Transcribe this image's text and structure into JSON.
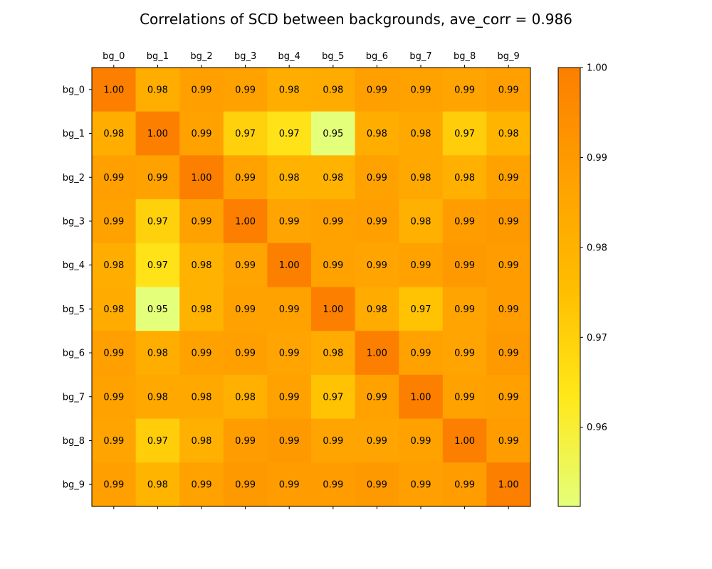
{
  "chart_data": {
    "type": "heatmap",
    "title": "Correlations of SCD between backgrounds, ave_corr = 0.986",
    "x_labels": [
      "bg_0",
      "bg_1",
      "bg_2",
      "bg_3",
      "bg_4",
      "bg_5",
      "bg_6",
      "bg_7",
      "bg_8",
      "bg_9"
    ],
    "y_labels": [
      "bg_0",
      "bg_1",
      "bg_2",
      "bg_3",
      "bg_4",
      "bg_5",
      "bg_6",
      "bg_7",
      "bg_8",
      "bg_9"
    ],
    "values": [
      [
        1.0,
        0.982,
        0.988,
        0.987,
        0.982,
        0.983,
        0.988,
        0.987,
        0.986,
        0.988
      ],
      [
        0.982,
        1.0,
        0.987,
        0.97,
        0.965,
        0.951,
        0.982,
        0.984,
        0.971,
        0.979
      ],
      [
        0.988,
        0.987,
        1.0,
        0.987,
        0.98,
        0.98,
        0.987,
        0.984,
        0.981,
        0.987
      ],
      [
        0.987,
        0.97,
        0.987,
        1.0,
        0.986,
        0.987,
        0.988,
        0.981,
        0.989,
        0.99
      ],
      [
        0.982,
        0.965,
        0.98,
        0.986,
        1.0,
        0.987,
        0.986,
        0.987,
        0.99,
        0.989
      ],
      [
        0.983,
        0.951,
        0.98,
        0.987,
        0.987,
        1.0,
        0.983,
        0.974,
        0.986,
        0.989
      ],
      [
        0.988,
        0.982,
        0.987,
        0.988,
        0.986,
        0.983,
        1.0,
        0.987,
        0.986,
        0.99
      ],
      [
        0.987,
        0.984,
        0.984,
        0.981,
        0.987,
        0.974,
        0.987,
        1.0,
        0.987,
        0.988
      ],
      [
        0.986,
        0.971,
        0.981,
        0.989,
        0.99,
        0.986,
        0.986,
        0.987,
        1.0,
        0.989
      ],
      [
        0.988,
        0.979,
        0.987,
        0.99,
        0.989,
        0.989,
        0.99,
        0.988,
        0.989,
        1.0
      ]
    ],
    "value_labels": [
      [
        "1.00",
        "0.98",
        "0.99",
        "0.99",
        "0.98",
        "0.98",
        "0.99",
        "0.99",
        "0.99",
        "0.99"
      ],
      [
        "0.98",
        "1.00",
        "0.99",
        "0.97",
        "0.97",
        "0.95",
        "0.98",
        "0.98",
        "0.97",
        "0.98"
      ],
      [
        "0.99",
        "0.99",
        "1.00",
        "0.99",
        "0.98",
        "0.98",
        "0.99",
        "0.98",
        "0.98",
        "0.99"
      ],
      [
        "0.99",
        "0.97",
        "0.99",
        "1.00",
        "0.99",
        "0.99",
        "0.99",
        "0.98",
        "0.99",
        "0.99"
      ],
      [
        "0.98",
        "0.97",
        "0.98",
        "0.99",
        "1.00",
        "0.99",
        "0.99",
        "0.99",
        "0.99",
        "0.99"
      ],
      [
        "0.98",
        "0.95",
        "0.98",
        "0.99",
        "0.99",
        "1.00",
        "0.98",
        "0.97",
        "0.99",
        "0.99"
      ],
      [
        "0.99",
        "0.98",
        "0.99",
        "0.99",
        "0.99",
        "0.98",
        "1.00",
        "0.99",
        "0.99",
        "0.99"
      ],
      [
        "0.99",
        "0.98",
        "0.98",
        "0.98",
        "0.99",
        "0.97",
        "0.99",
        "1.00",
        "0.99",
        "0.99"
      ],
      [
        "0.99",
        "0.97",
        "0.98",
        "0.99",
        "0.99",
        "0.99",
        "0.99",
        "0.99",
        "1.00",
        "0.99"
      ],
      [
        "0.99",
        "0.98",
        "0.99",
        "0.99",
        "0.99",
        "0.99",
        "0.99",
        "0.99",
        "0.99",
        "1.00"
      ]
    ],
    "x_axis_position": "top",
    "colorbar": {
      "vmin": 0.9512,
      "vmax": 1.0,
      "ticks": [
        0.96,
        0.97,
        0.98,
        0.99,
        1.0
      ],
      "tick_labels": [
        "0.96",
        "0.97",
        "0.98",
        "0.99",
        "1.00"
      ],
      "colormap": "Wistia",
      "colors": [
        "#e4ff7a",
        "#ffe81a",
        "#ffbd00",
        "#ffa000",
        "#fc7f00"
      ]
    },
    "grid": false,
    "legend": "none"
  }
}
